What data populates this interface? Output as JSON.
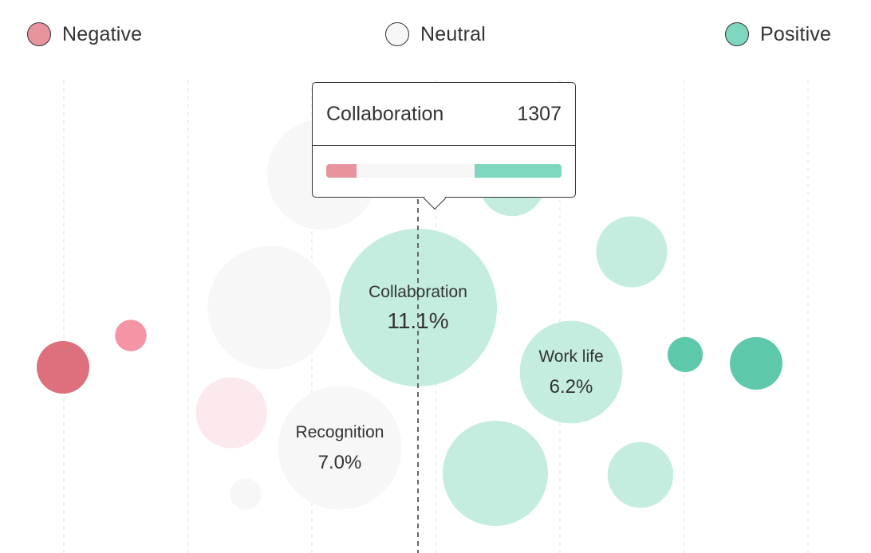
{
  "legend": {
    "negative": {
      "label": "Negative",
      "color": "#e8949e"
    },
    "neutral": {
      "label": "Neutral",
      "color": "#f7f7f7"
    },
    "positive": {
      "label": "Positive",
      "color": "#7fd6bf"
    }
  },
  "tooltip": {
    "topic": "Collaboration",
    "count": "1307",
    "negative_share": 0.13,
    "neutral_share": 0.5,
    "positive_share": 0.37
  },
  "chart_data": {
    "type": "scatter",
    "title": "",
    "xlabel": "",
    "ylabel": "",
    "series": [
      {
        "sentiment": "negative",
        "color": "#de6f7c",
        "size": 1.0
      },
      {
        "sentiment": "negative",
        "color": "#f494a4",
        "size": 0.6
      },
      {
        "sentiment": "negative",
        "color": "#fbe9ed",
        "size": 1.35
      },
      {
        "sentiment": "neutral",
        "color": "#f7f7f7",
        "size": 0.6
      },
      {
        "sentiment": "neutral",
        "color": "#f7f7f7",
        "size": 2.1
      },
      {
        "sentiment": "neutral",
        "color": "#f7f7f7",
        "size": 2.35
      },
      {
        "label": "Recognition",
        "value": "7.0%",
        "sentiment": "neutral",
        "color": "#f7f7f7",
        "size": 2.35
      },
      {
        "label": "Collaboration",
        "value": "11.1%",
        "sentiment": "positive",
        "color": "#c4ede0",
        "size": 3.0
      },
      {
        "label": "Work life",
        "value": "6.2%",
        "sentiment": "positive",
        "color": "#c4ede0",
        "size": 1.95
      },
      {
        "sentiment": "positive",
        "color": "#c4ede0",
        "size": 1.35
      },
      {
        "sentiment": "positive",
        "color": "#c4ede0",
        "size": 2.0
      },
      {
        "sentiment": "positive",
        "color": "#c4ede0",
        "size": 1.25
      },
      {
        "sentiment": "positive",
        "color": "#c4ede0",
        "size": 1.25
      },
      {
        "sentiment": "positive",
        "color": "#5dc8aa",
        "size": 0.67
      },
      {
        "sentiment": "positive",
        "color": "#5dc8aa",
        "size": 1.0
      }
    ]
  }
}
